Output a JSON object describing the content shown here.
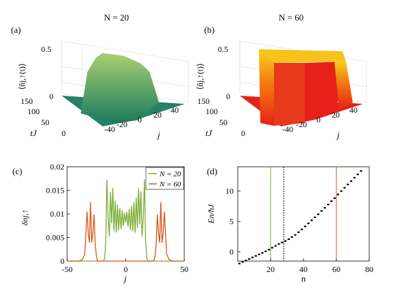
{
  "panel_titles": [
    "N = 20",
    "N = 60"
  ],
  "panel_tags": [
    "(a)",
    "(b)",
    "(c)",
    "(d)"
  ],
  "chart_data": [
    {
      "type": "area",
      "panel": "(a)",
      "title": "N = 20",
      "zlabel": "⟨n̂j,↑(t)⟩",
      "xlabel": "j",
      "ylabel": "tJ",
      "z_ticks": [
        "0",
        "0.5"
      ],
      "t_ticks": [
        "0",
        "50",
        "100",
        "150"
      ],
      "j_ticks": [
        "-40",
        "-20",
        "0",
        "20",
        "40"
      ],
      "zlim": [
        0,
        0.55
      ],
      "tlim": [
        0,
        150
      ],
      "jlim": [
        -40,
        40
      ],
      "profile": {
        "j_min": -10,
        "j_max": 10,
        "height": 0.5
      },
      "colors": {
        "low": "#1a7a5e",
        "high": "#a8d070"
      }
    },
    {
      "type": "area",
      "panel": "(b)",
      "title": "N = 60",
      "zlabel": "⟨n̂j,↑(t)⟩",
      "xlabel": "j",
      "ylabel": "tJ",
      "z_ticks": [
        "0",
        "0.5"
      ],
      "t_ticks": [
        "0",
        "50",
        "100",
        "150"
      ],
      "j_ticks": [
        "-40",
        "-20",
        "0",
        "20",
        "40"
      ],
      "zlim": [
        0,
        0.55
      ],
      "tlim": [
        0,
        150
      ],
      "jlim": [
        -40,
        40
      ],
      "profile": {
        "j_min": -30,
        "j_max": 30,
        "height": 0.5
      },
      "colors": {
        "low": "#e8201a",
        "high": "#f7d21e"
      }
    },
    {
      "type": "line",
      "panel": "(c)",
      "ylabel": "δnj,↑",
      "xlabel": "j",
      "xlim": [
        -50,
        50
      ],
      "ylim": [
        0,
        0.02
      ],
      "x_ticks": [
        "-50",
        "0",
        "50"
      ],
      "y_ticks": [
        "0",
        "0.005",
        "0.01",
        "0.015",
        "0.02"
      ],
      "legend_position": "top-right",
      "series": [
        {
          "name": "N = 20",
          "color": "#77ac30",
          "x": [
            -19,
            -18,
            -17,
            -16,
            -15,
            -14,
            -13,
            -12,
            -11,
            -10,
            -9,
            -8,
            -7,
            -6,
            -5,
            -4,
            -3,
            -2,
            -1,
            0,
            1,
            2,
            3,
            4,
            5,
            6,
            7,
            8,
            9,
            10,
            11,
            12,
            13,
            14,
            15,
            16,
            17,
            18,
            19
          ],
          "y": [
            0,
            0.0006,
            0.004,
            0.0173,
            0.0095,
            0.0052,
            0.0147,
            0.008,
            0.0155,
            0.0063,
            0.0128,
            0.006,
            0.012,
            0.0065,
            0.0112,
            0.0068,
            0.0108,
            0.0074,
            0.0102,
            0.0082,
            0.0104,
            0.0073,
            0.0111,
            0.0066,
            0.0117,
            0.0063,
            0.0126,
            0.006,
            0.0135,
            0.007,
            0.0155,
            0.0078,
            0.0148,
            0.0052,
            0.0094,
            0.0173,
            0.004,
            0.0006,
            0
          ]
        },
        {
          "name": "N = 60",
          "color": "#d95319",
          "x": [
            -50,
            -40,
            -37,
            -35,
            -34,
            -33,
            -32,
            -31,
            -30,
            -29,
            -28,
            -27,
            -26,
            -25,
            -24,
            -22,
            22,
            24,
            25,
            26,
            27,
            28,
            29,
            30,
            31,
            32,
            33,
            34,
            35,
            37,
            40,
            50
          ],
          "y": [
            0,
            0,
            0.0003,
            0.0015,
            0.006,
            0.0105,
            0.0059,
            0.0039,
            0.0125,
            0.0039,
            0.006,
            0.0099,
            0.0035,
            0.001,
            0,
            0,
            0,
            0,
            0.001,
            0.0035,
            0.0099,
            0.006,
            0.0039,
            0.0125,
            0.0039,
            0.0059,
            0.0105,
            0.006,
            0.0015,
            0.0003,
            0,
            0
          ]
        }
      ]
    },
    {
      "type": "scatter",
      "panel": "(d)",
      "ylabel": "En/ħJ",
      "xlabel": "n",
      "xlim": [
        0,
        80
      ],
      "ylim": [
        -1.5,
        14
      ],
      "x_ticks": [
        "20",
        "40",
        "60",
        "80"
      ],
      "y_ticks": [
        "0",
        "5",
        "10"
      ],
      "markers": {
        "n": [
          1,
          3,
          5,
          7,
          9,
          11,
          13,
          15,
          17,
          19,
          21,
          23,
          25,
          27,
          29,
          31,
          33,
          35,
          37,
          39,
          41,
          43,
          45,
          47,
          49,
          51,
          53,
          55,
          57,
          59,
          61,
          63,
          65,
          67,
          69,
          71,
          73,
          75
        ],
        "E": [
          -1.9,
          -1.65,
          -1.4,
          -1.15,
          -0.9,
          -0.65,
          -0.4,
          -0.15,
          0.1,
          0.38,
          0.7,
          1.0,
          1.3,
          1.55,
          1.8,
          2.1,
          2.45,
          2.8,
          3.25,
          3.7,
          4.2,
          4.7,
          5.2,
          5.7,
          6.2,
          6.75,
          7.25,
          7.8,
          8.35,
          8.85,
          9.45,
          10.0,
          10.55,
          11.1,
          11.65,
          12.2,
          12.75,
          13.3
        ]
      },
      "vlines": [
        {
          "n": 20,
          "color": "#77ac30",
          "style": "solid"
        },
        {
          "n": 28,
          "color": "#000000",
          "style": "dashed"
        },
        {
          "n": 60,
          "color": "#d95319",
          "style": "solid"
        }
      ]
    }
  ]
}
